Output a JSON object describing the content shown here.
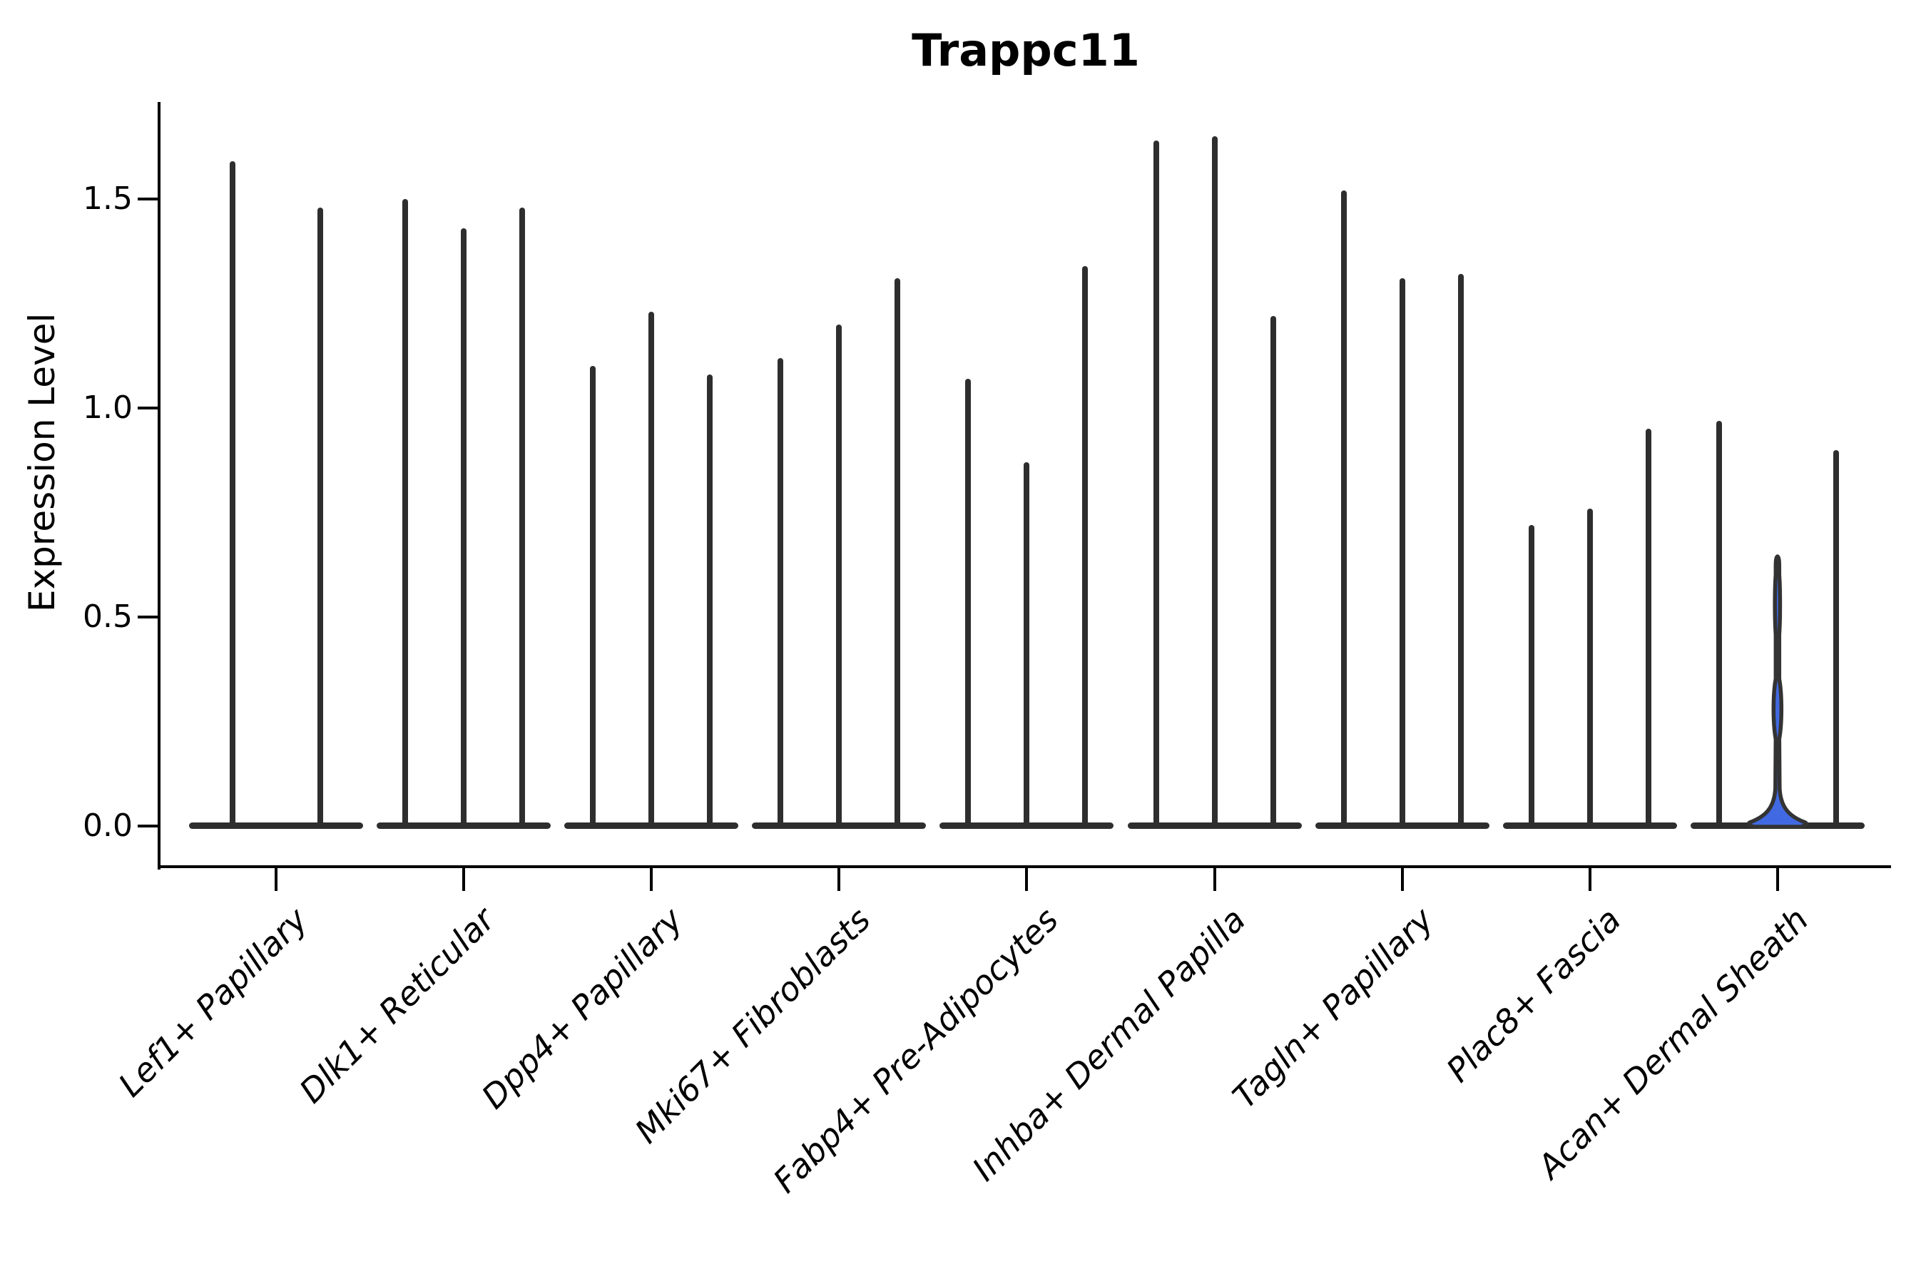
{
  "title": "Trappc11",
  "axes": {
    "ylabel": "Expression Level",
    "ytick_labels": [
      "0.0",
      "0.5",
      "1.0",
      "1.5"
    ]
  },
  "chart_data": {
    "type": "violin",
    "title": "Trappc11",
    "xlabel": "",
    "ylabel": "Expression Level",
    "ylim": [
      0,
      1.75
    ],
    "yticks": [
      0.0,
      0.5,
      1.0,
      1.5
    ],
    "grid": false,
    "legend": "none",
    "categories": [
      "Lef1+ Papillary",
      "Dlk1+ Reticular",
      "Dpp4+ Papillary",
      "Mki67+ Fibroblasts",
      "Fabp4+ Pre-Adipocytes",
      "Inhba+ Dermal Papilla",
      "Tagln+ Papillary",
      "Plac8+ Fascia",
      "Acan+ Dermal Sheath"
    ],
    "groups": [
      {
        "category": "Lef1+ Papillary",
        "violins": [
          {
            "max": 1.59
          },
          {
            "max": 1.48
          }
        ]
      },
      {
        "category": "Dlk1+ Reticular",
        "violins": [
          {
            "max": 1.5
          },
          {
            "max": 1.43
          },
          {
            "max": 1.48
          }
        ]
      },
      {
        "category": "Dpp4+ Papillary",
        "violins": [
          {
            "max": 1.1
          },
          {
            "max": 1.23
          },
          {
            "max": 1.08
          }
        ]
      },
      {
        "category": "Mki67+ Fibroblasts",
        "violins": [
          {
            "max": 1.12
          },
          {
            "max": 1.2
          },
          {
            "max": 1.31
          }
        ]
      },
      {
        "category": "Fabp4+ Pre-Adipocytes",
        "violins": [
          {
            "max": 1.07
          },
          {
            "max": 0.87
          },
          {
            "max": 1.34
          }
        ]
      },
      {
        "category": "Inhba+ Dermal Papilla",
        "violins": [
          {
            "max": 1.64
          },
          {
            "max": 1.65
          },
          {
            "max": 1.22
          }
        ]
      },
      {
        "category": "Tagln+ Papillary",
        "violins": [
          {
            "max": 1.52
          },
          {
            "max": 1.31
          },
          {
            "max": 1.32
          }
        ]
      },
      {
        "category": "Plac8+ Fascia",
        "violins": [
          {
            "max": 0.72
          },
          {
            "max": 0.76
          },
          {
            "max": 0.95
          }
        ]
      },
      {
        "category": "Acan+ Dermal Sheath",
        "violins": [
          {
            "max": 0.97
          },
          {
            "max": 0.64,
            "highlight": true,
            "fill": "#4169E1",
            "shape": {
              "stem_hw": 2.5,
              "base_hw": 39,
              "flare_v": 0.09,
              "bulges": [
                {
                  "v": 0.53,
                  "hw": 4.0
                },
                {
                  "v": 0.28,
                  "hw": 6.5
                }
              ]
            }
          },
          {
            "max": 0.9
          }
        ]
      }
    ],
    "style": {
      "violin_color": "#2e2e2e",
      "highlight_fill": "#4169E1",
      "highlight_edge": "#333333",
      "axis_color": "#000000",
      "background": "#ffffff"
    }
  }
}
